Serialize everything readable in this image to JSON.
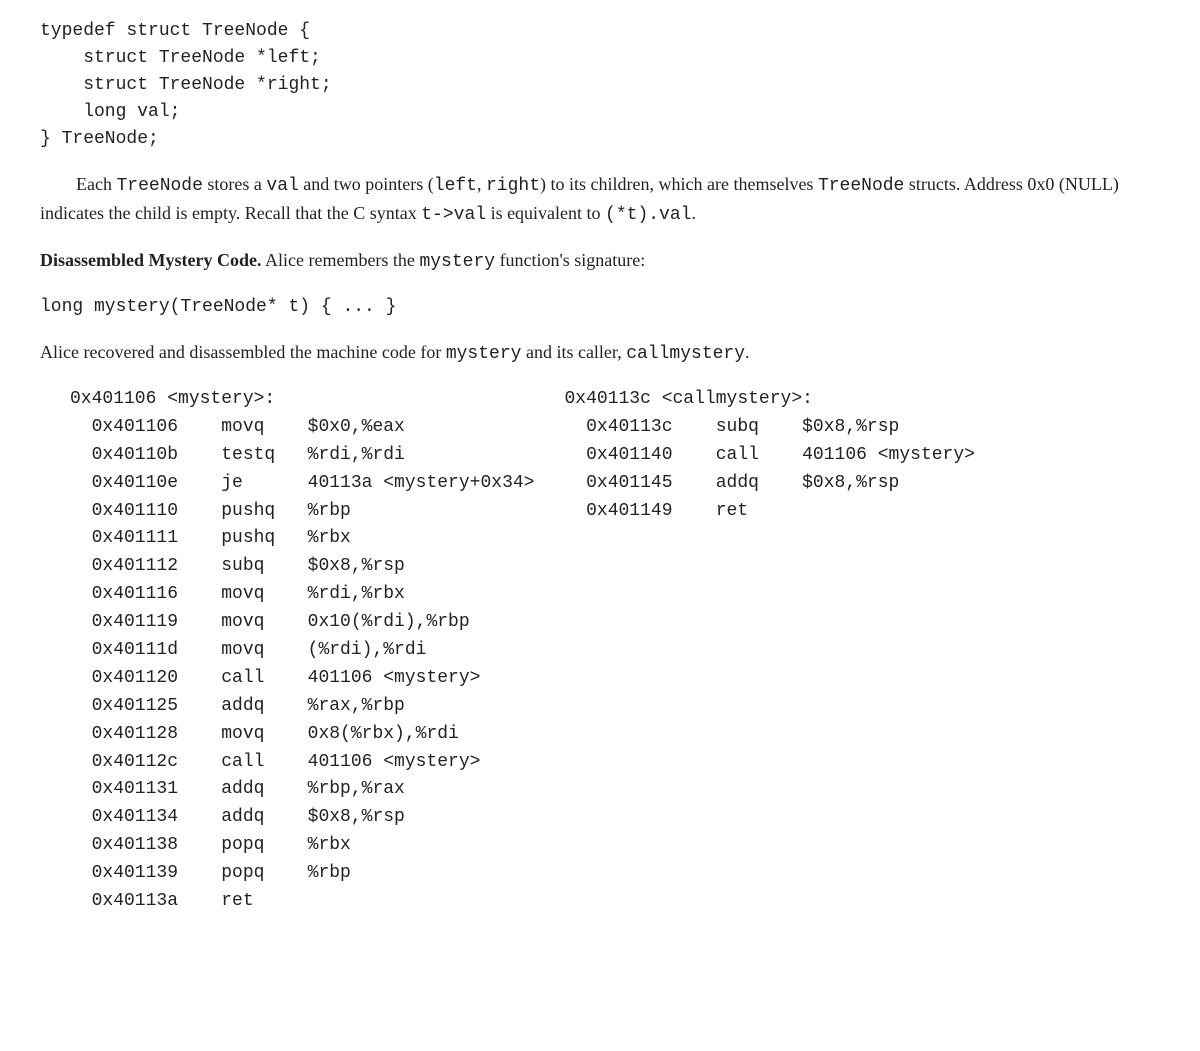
{
  "struct_code": "typedef struct TreeNode {\n    struct TreeNode *left;\n    struct TreeNode *right;\n    long val;\n} TreeNode;",
  "para1_pre": "Each ",
  "para1_m1": "TreeNode",
  "para1_mid1": " stores a ",
  "para1_m2": "val",
  "para1_mid2": " and two pointers (",
  "para1_m3": "left",
  "para1_mid3": ", ",
  "para1_m4": "right",
  "para1_mid4": ") to its children, which are themselves ",
  "para1_m5": "TreeNode",
  "para1_mid5": " structs. Address 0x0 (NULL) indicates the child is empty. Recall that the C syntax ",
  "para1_m6": "t->val",
  "para1_mid6": " is equivalent to ",
  "para1_m7": "(*t).val",
  "para1_end": ".",
  "section_head": "Disassembled Mystery Code.",
  "section_rest_pre": "   Alice remembers the ",
  "section_m1": "mystery",
  "section_rest_post": " function's signature:",
  "signature": "long mystery(TreeNode* t) { ... }",
  "para2_pre": "Alice recovered and disassembled the machine code for ",
  "para2_m1": "mystery",
  "para2_mid": " and its caller, ",
  "para2_m2": "callmystery",
  "para2_end": ".",
  "mystery_header": "0x401106 <mystery>:",
  "mystery_rows": [
    {
      "a": "0x401106",
      "op": "movq",
      "arg": "$0x0,%eax"
    },
    {
      "a": "0x40110b",
      "op": "testq",
      "arg": "%rdi,%rdi"
    },
    {
      "a": "0x40110e",
      "op": "je",
      "arg": "40113a <mystery+0x34>"
    },
    {
      "a": "0x401110",
      "op": "pushq",
      "arg": "%rbp"
    },
    {
      "a": "0x401111",
      "op": "pushq",
      "arg": "%rbx"
    },
    {
      "a": "0x401112",
      "op": "subq",
      "arg": "$0x8,%rsp"
    },
    {
      "a": "0x401116",
      "op": "movq",
      "arg": "%rdi,%rbx"
    },
    {
      "a": "0x401119",
      "op": "movq",
      "arg": "0x10(%rdi),%rbp"
    },
    {
      "a": "0x40111d",
      "op": "movq",
      "arg": "(%rdi),%rdi"
    },
    {
      "a": "0x401120",
      "op": "call",
      "arg": "401106 <mystery>"
    },
    {
      "a": "0x401125",
      "op": "addq",
      "arg": "%rax,%rbp"
    },
    {
      "a": "0x401128",
      "op": "movq",
      "arg": "0x8(%rbx),%rdi"
    },
    {
      "a": "0x40112c",
      "op": "call",
      "arg": "401106 <mystery>"
    },
    {
      "a": "0x401131",
      "op": "addq",
      "arg": "%rbp,%rax"
    },
    {
      "a": "0x401134",
      "op": "addq",
      "arg": "$0x8,%rsp"
    },
    {
      "a": "0x401138",
      "op": "popq",
      "arg": "%rbx"
    },
    {
      "a": "0x401139",
      "op": "popq",
      "arg": "%rbp"
    },
    {
      "a": "0x40113a",
      "op": "ret",
      "arg": ""
    }
  ],
  "callmystery_header": "0x40113c <callmystery>:",
  "callmystery_rows": [
    {
      "a": "0x40113c",
      "op": "subq",
      "arg": "$0x8,%rsp"
    },
    {
      "a": "0x401140",
      "op": "call",
      "arg": "401106 <mystery>"
    },
    {
      "a": "0x401145",
      "op": "addq",
      "arg": "$0x8,%rsp"
    },
    {
      "a": "0x401149",
      "op": "ret",
      "arg": ""
    }
  ],
  "layout": {
    "addr_pad": 12,
    "op_pad": 8,
    "row_indent": "  ",
    "header_indent": ""
  }
}
